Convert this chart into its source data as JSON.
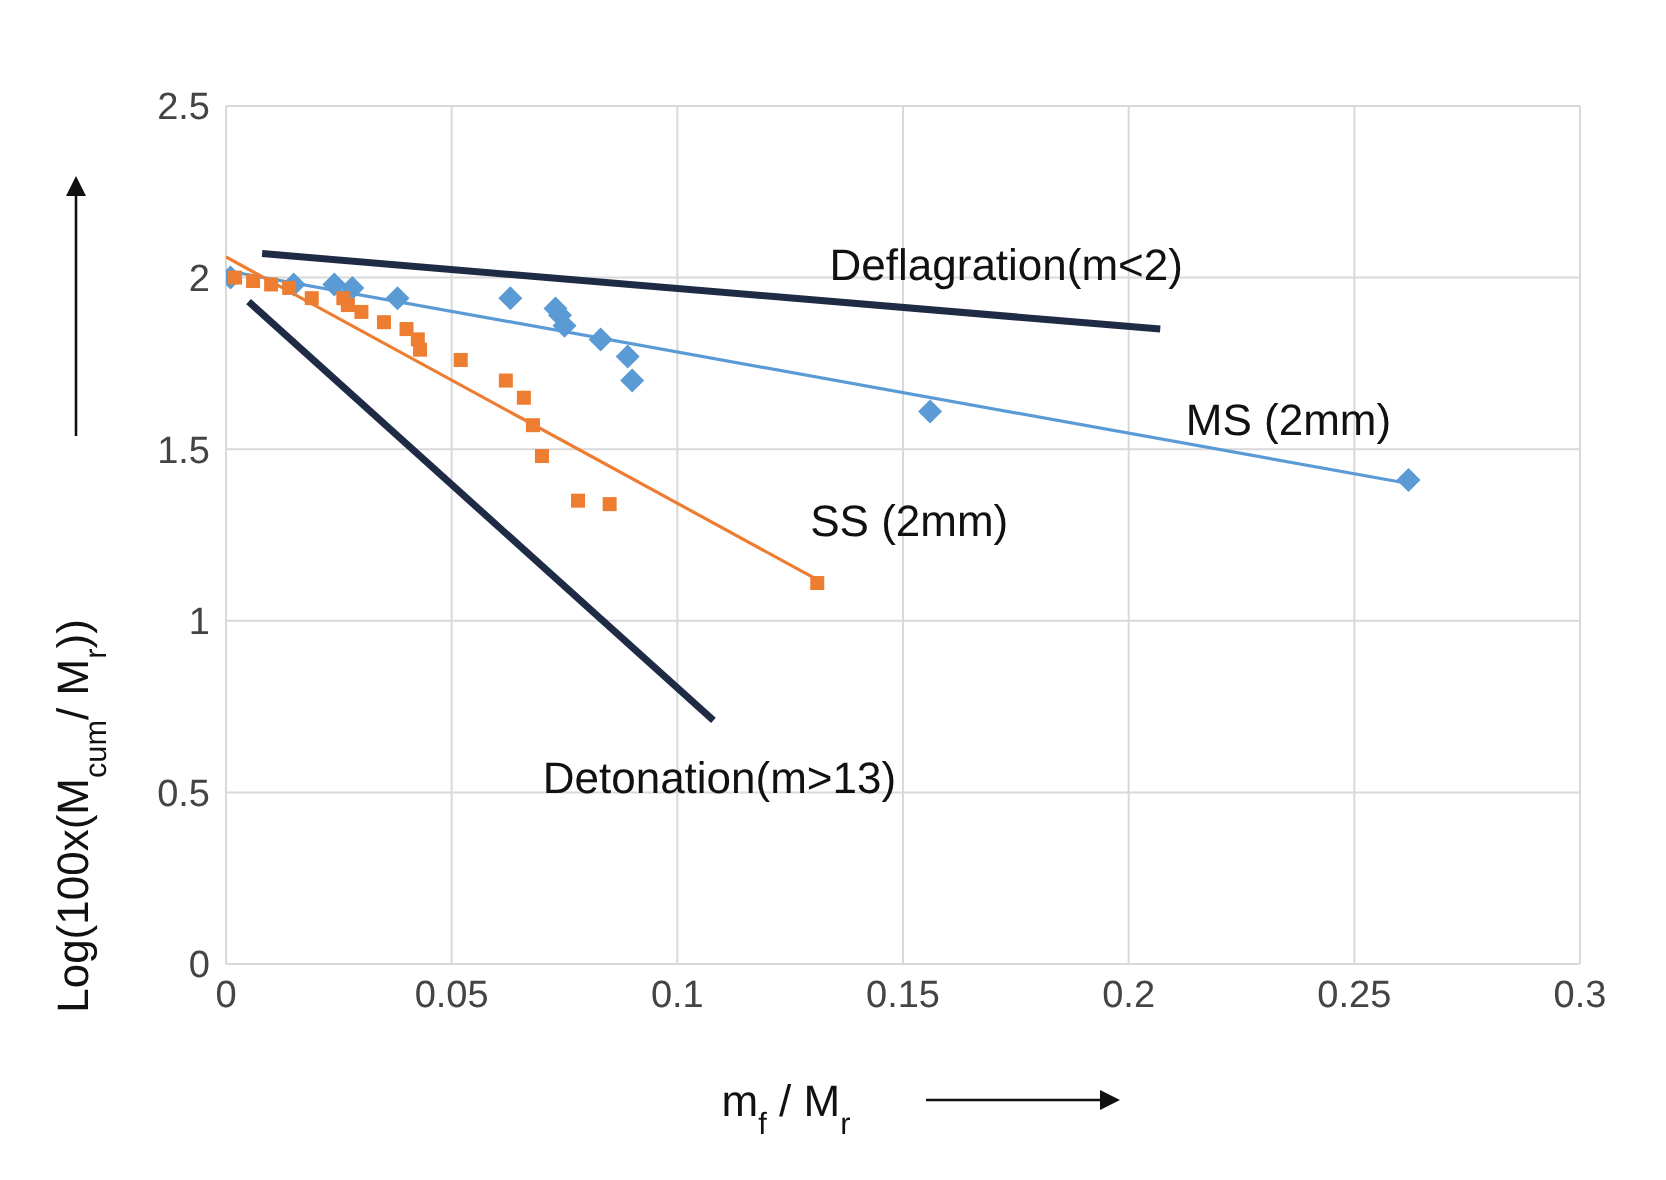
{
  "chart_data": {
    "type": "scatter",
    "xlabel": "m$_{f}$ / M$_{r}$",
    "ylabel": "Log(100x(M$_{cum}$/ M$_{r}$))",
    "xlim": [
      0,
      0.3
    ],
    "xticks": [
      0,
      0.05,
      0.1,
      0.15,
      0.2,
      0.25,
      0.3
    ],
    "ylim": [
      0,
      2.5
    ],
    "yticks": [
      0,
      0.5,
      1,
      1.5,
      2,
      2.5
    ],
    "grid": true,
    "series": [
      {
        "name": "Deflagration(m<2)",
        "type": "line",
        "marker": "none",
        "color": "#1f2a44",
        "x": [
          0.008,
          0.207
        ],
        "values": [
          2.07,
          1.85
        ]
      },
      {
        "name": "Detonation(m>13)",
        "type": "line",
        "marker": "none",
        "color": "#1f2a44",
        "x": [
          0.005,
          0.108
        ],
        "values": [
          1.93,
          0.71
        ]
      },
      {
        "name": "MS (2mm)",
        "marker": "diamond",
        "color": "#5b9bd5",
        "x": [
          0.001,
          0.005,
          0.01,
          0.015,
          0.024,
          0.028,
          0.038,
          0.063,
          0.073,
          0.074,
          0.075,
          0.083,
          0.089,
          0.09,
          0.156,
          0.262
        ],
        "values": [
          2.0,
          null,
          null,
          1.98,
          1.98,
          1.97,
          1.94,
          1.94,
          1.91,
          1.89,
          1.86,
          1.82,
          1.77,
          1.7,
          1.61,
          1.41
        ]
      },
      {
        "type": "line",
        "marker": "none",
        "color": "#5b9bd5",
        "x": [
          0,
          0.262
        ],
        "values": [
          2.02,
          1.4
        ]
      },
      {
        "name": "SS (2mm)",
        "marker": "square",
        "color": "#ed7d31",
        "x": [
          0.002,
          0.006,
          0.01,
          0.014,
          0.019,
          0.026,
          0.027,
          0.03,
          0.035,
          0.04,
          0.0425,
          0.043,
          0.052,
          0.062,
          0.066,
          0.068,
          0.07,
          0.078,
          0.085,
          0.131
        ],
        "values": [
          2.0,
          1.99,
          1.98,
          1.97,
          1.94,
          1.94,
          1.92,
          1.9,
          1.87,
          1.85,
          1.82,
          1.79,
          1.76,
          1.7,
          1.65,
          1.57,
          1.48,
          1.35,
          1.34,
          1.11
        ]
      },
      {
        "type": "line",
        "marker": "none",
        "color": "#ed7d31",
        "x": [
          0,
          0.131
        ],
        "values": [
          2.06,
          1.12
        ]
      }
    ]
  }
}
